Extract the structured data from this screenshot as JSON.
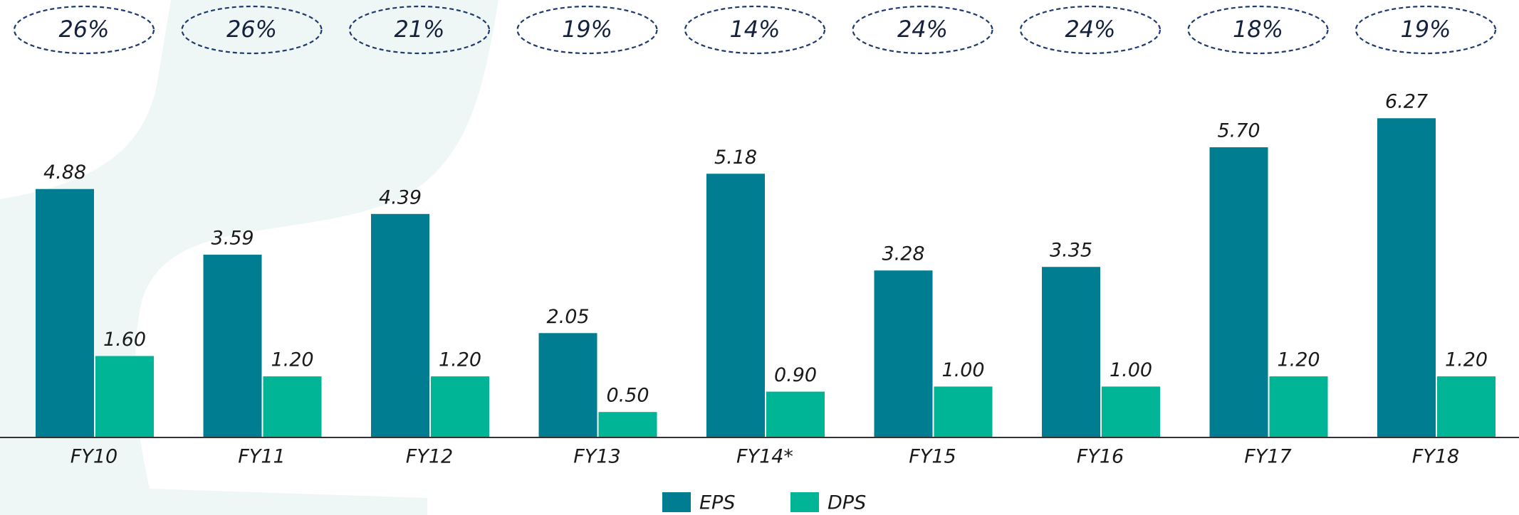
{
  "chart_data": {
    "type": "bar",
    "annotations": [
      "26%",
      "26%",
      "21%",
      "19%",
      "14%",
      "24%",
      "24%",
      "18%",
      "19%"
    ],
    "categories": [
      "FY10",
      "FY11",
      "FY12",
      "FY13",
      "FY14*",
      "FY15",
      "FY16",
      "FY17",
      "FY18"
    ],
    "series": [
      {
        "name": "EPS",
        "color": "#007d91",
        "values": [
          4.88,
          3.59,
          4.39,
          2.05,
          5.18,
          3.28,
          3.35,
          5.7,
          6.27
        ],
        "value_labels": [
          "4.88",
          "3.59",
          "4.39",
          "2.05",
          "5.18",
          "3.28",
          "3.35",
          "5.70",
          "6.27"
        ]
      },
      {
        "name": "DPS",
        "color": "#00b596",
        "values": [
          1.6,
          1.2,
          1.2,
          0.5,
          0.9,
          1.0,
          1.0,
          1.2,
          1.2
        ],
        "value_labels": [
          "1.60",
          "1.20",
          "1.20",
          "0.50",
          "0.90",
          "1.00",
          "1.00",
          "1.20",
          "1.20"
        ]
      }
    ],
    "ylim": [
      0,
      7
    ],
    "grid": false
  }
}
